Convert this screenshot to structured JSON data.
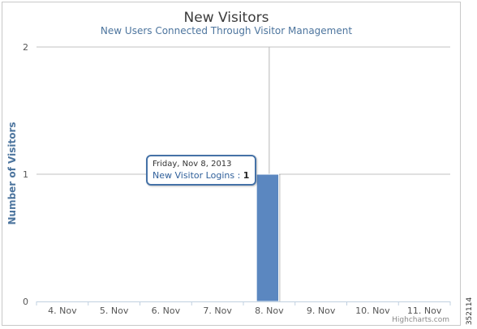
{
  "chart_data": {
    "type": "bar",
    "title": "New Visitors",
    "subtitle": "New Users Connected Through Visitor Management",
    "ylabel": "Number of Visitors",
    "xlabel": "",
    "categories": [
      "4. Nov",
      "5. Nov",
      "6. Nov",
      "7. Nov",
      "8. Nov",
      "9. Nov",
      "10. Nov",
      "11. Nov"
    ],
    "series": [
      {
        "name": "New Visitor Logins",
        "values": [
          0,
          0,
          0,
          0,
          1,
          0,
          0,
          0
        ],
        "color": "#5b87c0"
      }
    ],
    "yticks": [
      0,
      1,
      2
    ],
    "ylim": [
      0,
      2
    ],
    "grid": true,
    "legend": "none",
    "crosshair_category": "8. Nov"
  },
  "tooltip": {
    "date": "Friday, Nov 8, 2013",
    "series_label": "New Visitor Logins :",
    "value": "1"
  },
  "credits": "Highcharts.com",
  "figure_id": "352114"
}
